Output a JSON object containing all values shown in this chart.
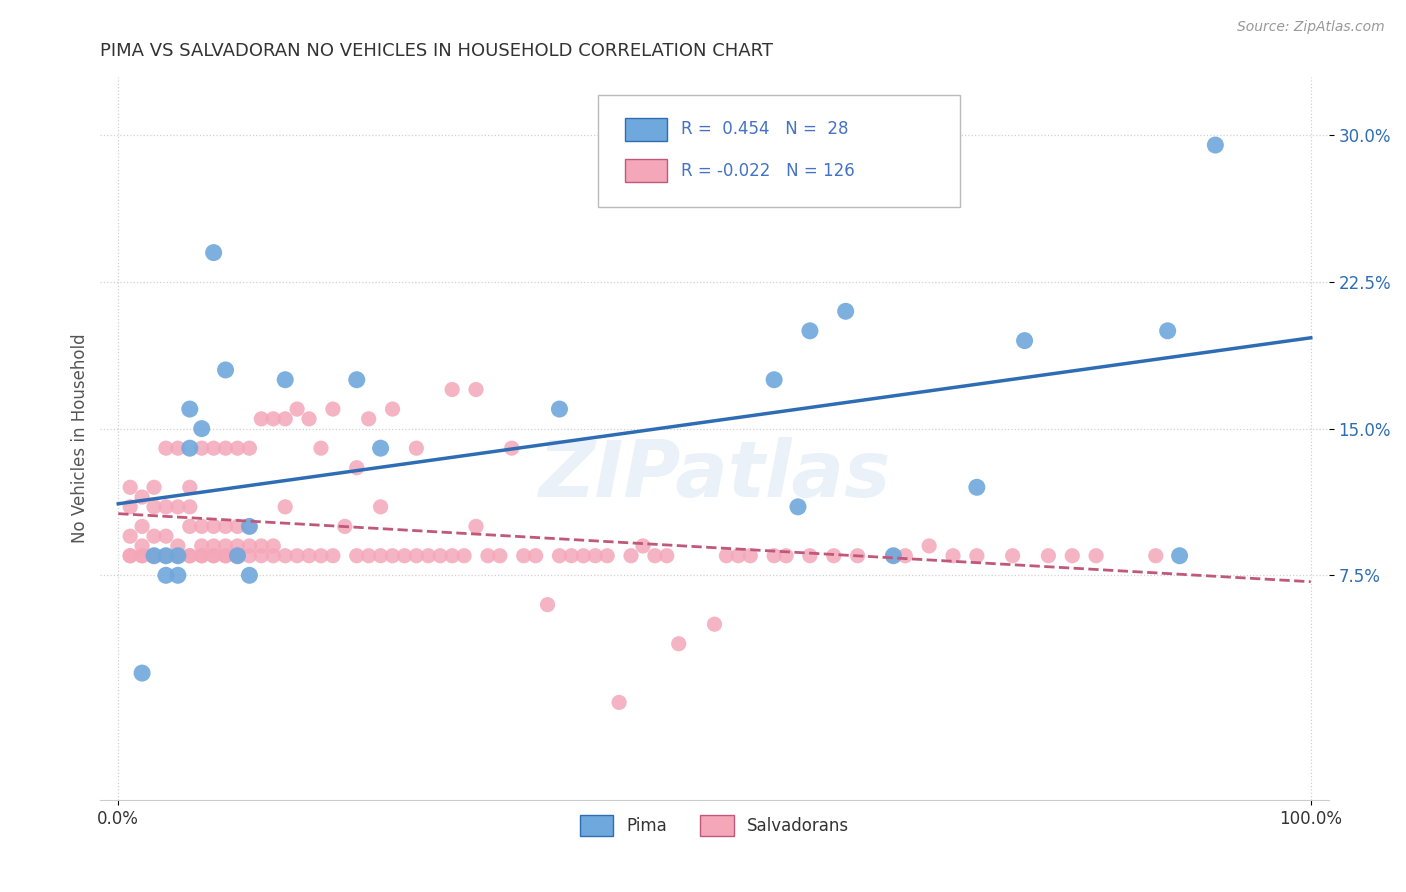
{
  "title": "PIMA VS SALVADORAN NO VEHICLES IN HOUSEHOLD CORRELATION CHART",
  "source": "Source: ZipAtlas.com",
  "ylabel": "No Vehicles in Household",
  "watermark": "ZIPatlas",
  "pima_R": 0.454,
  "pima_N": 28,
  "salv_R": -0.022,
  "salv_N": 126,
  "x_range": [
    0.0,
    1.0
  ],
  "y_range": [
    -0.04,
    0.33
  ],
  "yticks": [
    0.075,
    0.15,
    0.225,
    0.3
  ],
  "ytick_labels": [
    "7.5%",
    "15.0%",
    "22.5%",
    "30.0%"
  ],
  "pima_color": "#6fa8dc",
  "salv_color": "#f4a7b9",
  "pima_line_color": "#2e6db4",
  "salv_line_color": "#c0587a",
  "background_color": "#ffffff",
  "grid_color": "#cccccc",
  "title_color": "#333333",
  "legend_text_color": "#4472c4",
  "pima_points_x": [
    0.02,
    0.03,
    0.04,
    0.04,
    0.05,
    0.05,
    0.06,
    0.06,
    0.07,
    0.08,
    0.09,
    0.1,
    0.11,
    0.11,
    0.14,
    0.2,
    0.22,
    0.37,
    0.55,
    0.57,
    0.58,
    0.61,
    0.65,
    0.72,
    0.76,
    0.88,
    0.89,
    0.92
  ],
  "pima_points_y": [
    0.025,
    0.085,
    0.085,
    0.075,
    0.085,
    0.075,
    0.16,
    0.14,
    0.15,
    0.24,
    0.18,
    0.085,
    0.075,
    0.1,
    0.175,
    0.175,
    0.14,
    0.16,
    0.175,
    0.11,
    0.2,
    0.21,
    0.085,
    0.12,
    0.195,
    0.2,
    0.085,
    0.295
  ],
  "salv_points_x": [
    0.01,
    0.01,
    0.01,
    0.01,
    0.01,
    0.02,
    0.02,
    0.02,
    0.02,
    0.02,
    0.03,
    0.03,
    0.03,
    0.03,
    0.03,
    0.04,
    0.04,
    0.04,
    0.04,
    0.04,
    0.05,
    0.05,
    0.05,
    0.05,
    0.05,
    0.06,
    0.06,
    0.06,
    0.06,
    0.06,
    0.07,
    0.07,
    0.07,
    0.07,
    0.07,
    0.08,
    0.08,
    0.08,
    0.08,
    0.08,
    0.09,
    0.09,
    0.09,
    0.09,
    0.09,
    0.1,
    0.1,
    0.1,
    0.1,
    0.1,
    0.11,
    0.11,
    0.11,
    0.11,
    0.12,
    0.12,
    0.12,
    0.13,
    0.13,
    0.13,
    0.14,
    0.14,
    0.14,
    0.15,
    0.15,
    0.16,
    0.16,
    0.17,
    0.17,
    0.18,
    0.18,
    0.19,
    0.2,
    0.2,
    0.21,
    0.21,
    0.22,
    0.22,
    0.23,
    0.23,
    0.24,
    0.25,
    0.25,
    0.26,
    0.27,
    0.28,
    0.28,
    0.29,
    0.3,
    0.3,
    0.31,
    0.32,
    0.33,
    0.34,
    0.35,
    0.36,
    0.37,
    0.38,
    0.39,
    0.4,
    0.41,
    0.42,
    0.43,
    0.44,
    0.45,
    0.46,
    0.47,
    0.5,
    0.51,
    0.52,
    0.53,
    0.55,
    0.56,
    0.58,
    0.6,
    0.62,
    0.65,
    0.66,
    0.68,
    0.7,
    0.72,
    0.75,
    0.78,
    0.8,
    0.82,
    0.87
  ],
  "salv_points_y": [
    0.085,
    0.085,
    0.095,
    0.11,
    0.12,
    0.085,
    0.085,
    0.09,
    0.1,
    0.115,
    0.085,
    0.085,
    0.095,
    0.11,
    0.12,
    0.085,
    0.085,
    0.095,
    0.11,
    0.14,
    0.085,
    0.085,
    0.09,
    0.11,
    0.14,
    0.085,
    0.085,
    0.1,
    0.11,
    0.12,
    0.085,
    0.085,
    0.09,
    0.1,
    0.14,
    0.085,
    0.085,
    0.09,
    0.1,
    0.14,
    0.085,
    0.085,
    0.09,
    0.1,
    0.14,
    0.085,
    0.085,
    0.09,
    0.1,
    0.14,
    0.085,
    0.09,
    0.1,
    0.14,
    0.085,
    0.09,
    0.155,
    0.085,
    0.09,
    0.155,
    0.085,
    0.11,
    0.155,
    0.085,
    0.16,
    0.085,
    0.155,
    0.085,
    0.14,
    0.085,
    0.16,
    0.1,
    0.085,
    0.13,
    0.085,
    0.155,
    0.085,
    0.11,
    0.085,
    0.16,
    0.085,
    0.085,
    0.14,
    0.085,
    0.085,
    0.085,
    0.17,
    0.085,
    0.1,
    0.17,
    0.085,
    0.085,
    0.14,
    0.085,
    0.085,
    0.06,
    0.085,
    0.085,
    0.085,
    0.085,
    0.085,
    0.01,
    0.085,
    0.09,
    0.085,
    0.085,
    0.04,
    0.05,
    0.085,
    0.085,
    0.085,
    0.085,
    0.085,
    0.085,
    0.085,
    0.085,
    0.085,
    0.085,
    0.09,
    0.085,
    0.085,
    0.085,
    0.085,
    0.085,
    0.085,
    0.085
  ]
}
